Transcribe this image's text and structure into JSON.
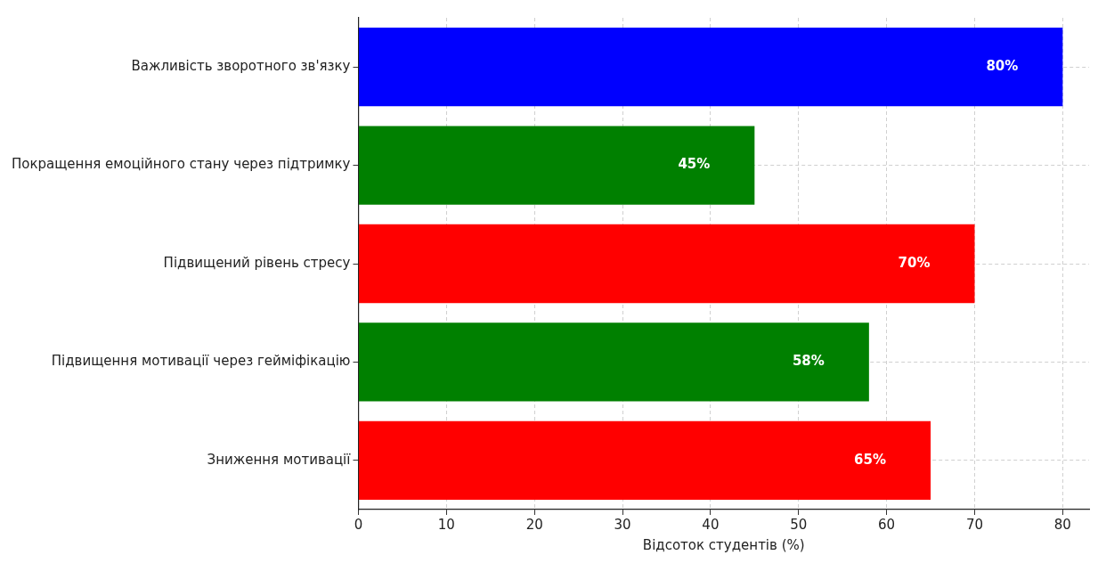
{
  "chart_data": {
    "type": "bar",
    "orientation": "horizontal",
    "xlabel": "Відсоток студентів (%)",
    "categories": [
      "Важливість зворотного зв'язку",
      "Покращення емоційного стану через підтримку",
      "Підвищений рівень стресу",
      "Підвищення мотивації через гейміфікацію",
      "Зниження мотивації"
    ],
    "values": [
      80,
      45,
      70,
      58,
      65
    ],
    "colors": [
      "#0000ff",
      "#008000",
      "#ff0000",
      "#008000",
      "#ff0000"
    ],
    "value_labels": [
      "80%",
      "45%",
      "70%",
      "58%",
      "65%"
    ],
    "xlim": [
      0,
      83
    ],
    "xticks": [
      0,
      10,
      20,
      30,
      40,
      50,
      60,
      70,
      80
    ],
    "grid": true
  }
}
